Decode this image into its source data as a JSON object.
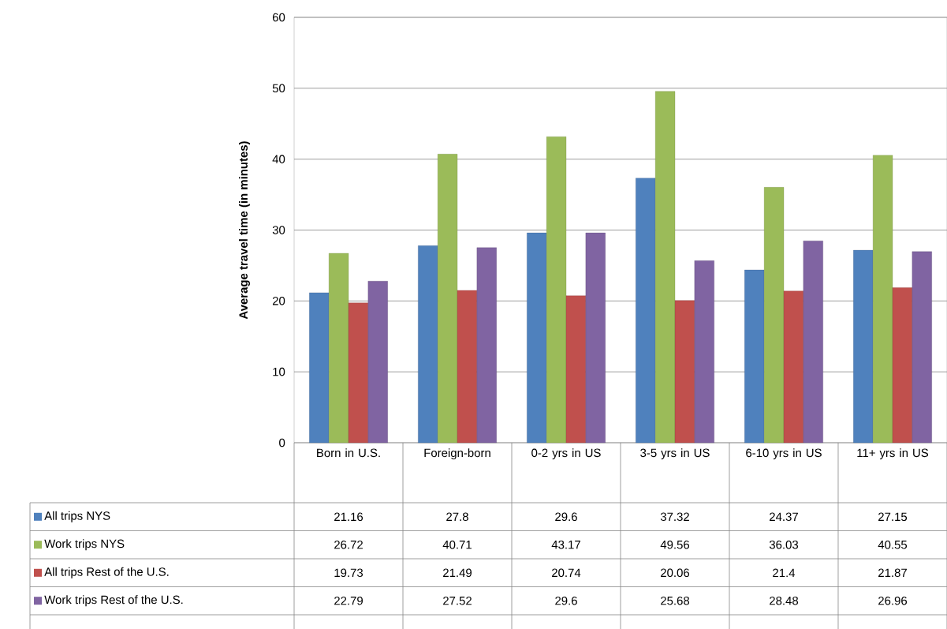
{
  "chart_data": {
    "type": "bar",
    "ylabel": "Average travel time (in minutes)",
    "categories": [
      "Born in U.S.",
      "Foreign-born",
      "0-2 yrs in US",
      "3-5 yrs in US",
      "6-10 yrs in US",
      "11+ yrs in US"
    ],
    "series": [
      {
        "name": "All trips NYS",
        "color": "#4f81bd",
        "values": [
          21.16,
          27.8,
          29.6,
          37.32,
          24.37,
          27.15
        ]
      },
      {
        "name": "Work trips NYS",
        "color": "#9bbb59",
        "values": [
          26.72,
          40.71,
          43.17,
          49.56,
          36.03,
          40.55
        ]
      },
      {
        "name": "All trips Rest of the U.S.",
        "color": "#c0504d",
        "values": [
          19.73,
          21.49,
          20.74,
          20.06,
          21.4,
          21.87
        ]
      },
      {
        "name": "Work trips Rest of the U.S.",
        "color": "#8064a2",
        "values": [
          22.79,
          27.52,
          29.6,
          25.68,
          28.48,
          26.96
        ]
      }
    ],
    "ylim": [
      0,
      60
    ],
    "yticks": [
      0,
      10,
      20,
      30,
      40,
      50,
      60
    ],
    "grid": "y",
    "legend": "bottom left",
    "data_labels": true
  }
}
